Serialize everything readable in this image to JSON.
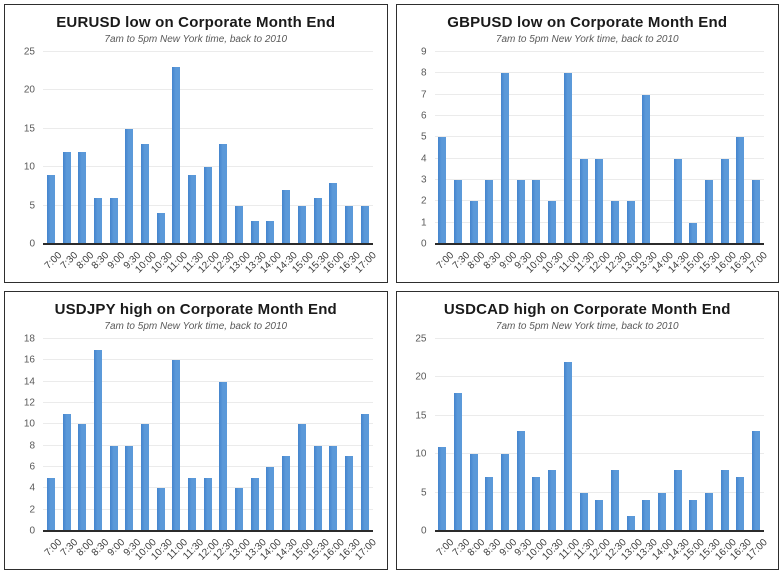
{
  "page": {
    "background_color": "#ffffff",
    "panel_border_color": "#2e2e2e",
    "accent_bar_color": "#5192d6",
    "gridline_color": "#ebebeb"
  },
  "chart_data": [
    {
      "type": "bar",
      "title": "EURUSD low on Corporate Month End",
      "subtitle": "7am to 5pm New York time, back to 2010",
      "categories": [
        "7:00",
        "7:30",
        "8:00",
        "8:30",
        "9:00",
        "9:30",
        "10:00",
        "10:30",
        "11:00",
        "11:30",
        "12:00",
        "12:30",
        "13:00",
        "13:30",
        "14:00",
        "14:30",
        "15:00",
        "15:30",
        "16:00",
        "16:30",
        "17:00"
      ],
      "values": [
        9,
        12,
        12,
        6,
        6,
        15,
        13,
        4,
        23,
        9,
        10,
        13,
        5,
        3,
        3,
        7,
        5,
        6,
        8,
        5,
        5
      ],
      "xlabel": "",
      "ylabel": "",
      "ylim": [
        0,
        25
      ],
      "ytick_step": 5,
      "grid": true,
      "legend": false,
      "bar_color": "#5192d6"
    },
    {
      "type": "bar",
      "title": "GBPUSD low on Corporate Month End",
      "subtitle": "7am to 5pm New York time, back to 2010",
      "categories": [
        "7:00",
        "7:30",
        "8:00",
        "8:30",
        "9:00",
        "9:30",
        "10:00",
        "10:30",
        "11:00",
        "11:30",
        "12:00",
        "12:30",
        "13:00",
        "13:30",
        "14:00",
        "14:30",
        "15:00",
        "15:30",
        "16:00",
        "16:30",
        "17:00"
      ],
      "values": [
        5,
        3,
        2,
        3,
        8,
        3,
        3,
        2,
        8,
        4,
        4,
        2,
        2,
        7,
        0,
        4,
        1,
        3,
        4,
        5,
        3
      ],
      "xlabel": "",
      "ylabel": "",
      "ylim": [
        0,
        9
      ],
      "ytick_step": 1,
      "grid": true,
      "legend": false,
      "bar_color": "#5192d6"
    },
    {
      "type": "bar",
      "title": "USDJPY high on Corporate Month End",
      "subtitle": "7am to 5pm New York time, back to 2010",
      "categories": [
        "7:00",
        "7:30",
        "8:00",
        "8:30",
        "9:00",
        "9:30",
        "10:00",
        "10:30",
        "11:00",
        "11:30",
        "12:00",
        "12:30",
        "13:00",
        "13:30",
        "14:00",
        "14:30",
        "15:00",
        "15:30",
        "16:00",
        "16:30",
        "17:00"
      ],
      "values": [
        5,
        11,
        10,
        17,
        8,
        8,
        10,
        4,
        16,
        5,
        5,
        14,
        4,
        5,
        6,
        7,
        10,
        8,
        8,
        7,
        11
      ],
      "xlabel": "",
      "ylabel": "",
      "ylim": [
        0,
        18
      ],
      "ytick_step": 2,
      "grid": true,
      "legend": false,
      "bar_color": "#5192d6"
    },
    {
      "type": "bar",
      "title": "USDCAD high on Corporate Month End",
      "subtitle": "7am to 5pm New York time, back to 2010",
      "categories": [
        "7:00",
        "7:30",
        "8:00",
        "8:30",
        "9:00",
        "9:30",
        "10:00",
        "10:30",
        "11:00",
        "11:30",
        "12:00",
        "12:30",
        "13:00",
        "13:30",
        "14:00",
        "14:30",
        "15:00",
        "15:30",
        "16:00",
        "16:30",
        "17:00"
      ],
      "values": [
        11,
        18,
        10,
        7,
        10,
        13,
        7,
        8,
        22,
        5,
        4,
        8,
        2,
        4,
        5,
        8,
        4,
        5,
        8,
        7,
        13
      ],
      "xlabel": "",
      "ylabel": "",
      "ylim": [
        0,
        25
      ],
      "ytick_step": 5,
      "grid": true,
      "legend": false,
      "bar_color": "#5192d6"
    }
  ]
}
